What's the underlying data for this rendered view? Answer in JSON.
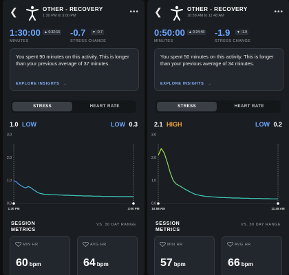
{
  "screens": [
    {
      "title": "OTHER - RECOVERY",
      "time_range": "1:30 PM to 3:00 PM",
      "duration_value": "1:30:00",
      "duration_chip": "0:32:16",
      "duration_label": "MINUTES",
      "stress_change_value": "-0.7",
      "stress_change_chip": "-0.7",
      "stress_change_label": "STRESS CHANGE",
      "insight_text": "You spent 90 minutes on this activity. This is longer than your previous average of 37 minutes.",
      "explore_label": "EXPLORE INSIGHTS",
      "explore_arrow": "→",
      "tab_stress": "STRESS",
      "tab_heart_rate": "HEART RATE",
      "start_value": "1.0",
      "start_word": "LOW",
      "start_color": "#6ba7ff",
      "end_word": "LOW",
      "end_value": "0.3",
      "session_title": "SESSION\nMETRICS",
      "vs_label": "VS. 30 DAY RANGE",
      "min_hr_label": "MIN HR",
      "min_hr_value": "60",
      "avg_hr_label": "AVG HR",
      "avg_hr_value": "64",
      "bpm": "bpm"
    },
    {
      "title": "OTHER - RECOVERY",
      "time_range": "10:58 AM to 11:48 AM",
      "duration_value": "0:50:00",
      "duration_chip": "0:34:48",
      "duration_label": "MINUTES",
      "stress_change_value": "-1.9",
      "stress_change_chip": "-1.9",
      "stress_change_label": "STRESS CHANGE",
      "insight_text": "You spent 50 minutes on this activity. This is longer than your previous average of 34 minutes.",
      "explore_label": "EXPLORE INSIGHTS",
      "explore_arrow": "→",
      "tab_stress": "STRESS",
      "tab_heart_rate": "HEART RATE",
      "start_value": "2.1",
      "start_word": "HIGH",
      "start_color": "#f0a23b",
      "end_word": "LOW",
      "end_value": "0.2",
      "session_title": "SESSION\nMETRICS",
      "vs_label": "VS. 30 DAY RANGE",
      "min_hr_label": "MIN HR",
      "min_hr_value": "57",
      "avg_hr_label": "AVG HR",
      "avg_hr_value": "66",
      "bpm": "bpm"
    }
  ],
  "chart_data": [
    {
      "type": "line",
      "title": "",
      "xlabel": "",
      "ylabel": "",
      "ylim": [
        0,
        3
      ],
      "yticks": [
        "0.0",
        "1.0",
        "2.0",
        "3.0"
      ],
      "x_start": "1:30 PM",
      "x_end": "3:00 PM",
      "series": [
        {
          "values": [
            1.0,
            0.95,
            0.85,
            0.78,
            0.72,
            0.68,
            0.74,
            0.7,
            0.62,
            0.55,
            0.48,
            0.44,
            0.42,
            0.4,
            0.4,
            0.39,
            0.38,
            0.38,
            0.38,
            0.37,
            0.37,
            0.36,
            0.36,
            0.36,
            0.35,
            0.35,
            0.34,
            0.34,
            0.34,
            0.33,
            0.33,
            0.33,
            0.33,
            0.32,
            0.32,
            0.32,
            0.32,
            0.31,
            0.31,
            0.31,
            0.31,
            0.31,
            0.31,
            0.3,
            0.3,
            0.3,
            0.3,
            0.3,
            0.3,
            0.3,
            0.3
          ],
          "color_start": "#4f8ff7",
          "color_end": "#3fd2c2"
        }
      ]
    },
    {
      "type": "line",
      "title": "",
      "xlabel": "",
      "ylabel": "",
      "ylim": [
        0,
        3
      ],
      "yticks": [
        "0.0",
        "1.0",
        "2.0",
        "3.0"
      ],
      "x_start": "10:58 AM",
      "x_end": "11:48 AM",
      "series": [
        {
          "values": [
            2.1,
            2.4,
            2.2,
            1.8,
            1.35,
            1.0,
            0.85,
            0.78,
            0.7,
            0.62,
            0.55,
            0.48,
            0.42,
            0.38,
            0.35,
            0.33,
            0.31,
            0.3,
            0.29,
            0.28,
            0.27,
            0.26,
            0.26,
            0.25,
            0.25,
            0.24,
            0.24,
            0.24,
            0.23,
            0.23,
            0.23,
            0.22,
            0.22,
            0.22,
            0.22,
            0.21,
            0.21,
            0.21,
            0.2,
            0.2,
            0.2
          ],
          "color_start": "#b5e02a",
          "color_end": "#3fd2c2"
        }
      ]
    }
  ]
}
